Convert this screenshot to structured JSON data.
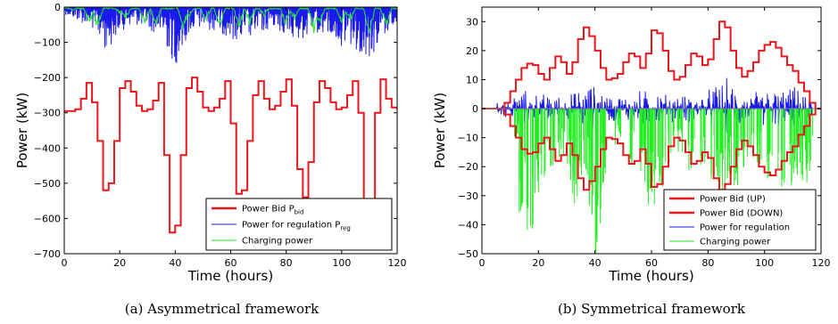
{
  "figure": {
    "captions": [
      "(a) Asymmetrical framework",
      "(b) Symmetrical framework"
    ]
  },
  "colors": {
    "bid": "#e8171c",
    "regulation": "#1a1aee",
    "charging": "#22ee22"
  },
  "chart_data": [
    {
      "type": "line",
      "title": "",
      "xlabel": "Time (hours)",
      "ylabel": "Power (kW)",
      "xlim": [
        0,
        120
      ],
      "ylim": [
        -700,
        0
      ],
      "xticks": [
        0,
        20,
        40,
        60,
        80,
        100,
        120
      ],
      "yticks": [
        0,
        -100,
        -200,
        -300,
        -400,
        -500,
        -600,
        -700
      ],
      "grid": false,
      "legend_position": "bottom-right",
      "legend": [
        {
          "label": "Power Bid P",
          "sub": "bid",
          "color": "#e8171c"
        },
        {
          "label": "Power for regulation P",
          "sub": "reg",
          "color": "#1a1aee"
        },
        {
          "label": "Charging power",
          "sub": "",
          "color": "#22ee22"
        }
      ],
      "series": [
        {
          "name": "Power Bid Pbid",
          "style": "step",
          "x": [
            0,
            4,
            6,
            8,
            10,
            12,
            14,
            16,
            18,
            20,
            22,
            24,
            26,
            28,
            30,
            32,
            34,
            36,
            38,
            40,
            42,
            44,
            46,
            48,
            50,
            52,
            54,
            56,
            58,
            60,
            62,
            64,
            66,
            68,
            70,
            72,
            74,
            76,
            78,
            80,
            82,
            84,
            86,
            88,
            90,
            92,
            94,
            96,
            98,
            100,
            102,
            104,
            106,
            108,
            110,
            112,
            114,
            116,
            118,
            120
          ],
          "y": [
            -295,
            -290,
            -260,
            -215,
            -270,
            -380,
            -520,
            -500,
            -380,
            -230,
            -210,
            -240,
            -280,
            -295,
            -290,
            -265,
            -215,
            -420,
            -640,
            -620,
            -420,
            -230,
            -200,
            -240,
            -285,
            -295,
            -285,
            -260,
            -210,
            -330,
            -530,
            -520,
            -380,
            -250,
            -210,
            -260,
            -290,
            -280,
            -240,
            -205,
            -280,
            -460,
            -540,
            -440,
            -270,
            -210,
            -230,
            -270,
            -290,
            -285,
            -250,
            -210,
            -300,
            -560,
            -560,
            -300,
            -205,
            -260,
            -285,
            -290
          ]
        },
        {
          "name": "Power for regulation Preg",
          "style": "noise-band",
          "x": [
            0,
            5,
            10,
            15,
            20,
            25,
            30,
            35,
            40,
            45,
            50,
            55,
            60,
            65,
            70,
            75,
            80,
            85,
            90,
            95,
            100,
            105,
            110,
            115,
            120
          ],
          "y": [
            -20,
            -40,
            -60,
            -130,
            -70,
            -50,
            -60,
            -90,
            -170,
            -80,
            -60,
            -70,
            -90,
            -100,
            -80,
            -60,
            -80,
            -100,
            -70,
            -90,
            -110,
            -120,
            -150,
            -90,
            -40
          ]
        },
        {
          "name": "Charging power",
          "style": "dips",
          "x": [
            3,
            9,
            12,
            20,
            22,
            29,
            33,
            43,
            45,
            51,
            56,
            63,
            67,
            72,
            80,
            83,
            90,
            92,
            100,
            103,
            110,
            116
          ],
          "y": [
            -10,
            -55,
            -70,
            -20,
            -40,
            -60,
            -55,
            -75,
            -30,
            -45,
            -65,
            -70,
            -60,
            -30,
            -65,
            -40,
            -75,
            -60,
            -50,
            -45,
            -90,
            -70
          ]
        }
      ]
    },
    {
      "type": "line",
      "title": "",
      "xlabel": "Time (hours)",
      "ylabel": "Power (kW)",
      "xlim": [
        0,
        120
      ],
      "ylim": [
        -50,
        35
      ],
      "xticks": [
        0,
        20,
        40,
        60,
        80,
        100,
        120
      ],
      "yticks": [
        30,
        20,
        10,
        0,
        -10,
        -20,
        -30,
        -40,
        -50
      ],
      "grid": false,
      "legend_position": "bottom-right",
      "legend": [
        {
          "label": "Power Bid (UP)",
          "sub": "",
          "color": "#e8171c"
        },
        {
          "label": "Power Bid (DOWN)",
          "sub": "",
          "color": "#e8171c"
        },
        {
          "label": "Power for regulation",
          "sub": "",
          "color": "#1a1aee"
        },
        {
          "label": "Charging power",
          "sub": "",
          "color": "#22ee22"
        }
      ],
      "series": [
        {
          "name": "Power Bid (UP)",
          "style": "step",
          "x": [
            0,
            6,
            8,
            10,
            12,
            14,
            16,
            18,
            20,
            22,
            24,
            26,
            28,
            30,
            32,
            34,
            36,
            38,
            40,
            42,
            44,
            46,
            48,
            50,
            52,
            54,
            56,
            58,
            60,
            62,
            64,
            66,
            68,
            70,
            72,
            74,
            76,
            78,
            80,
            82,
            84,
            86,
            88,
            90,
            92,
            94,
            96,
            98,
            100,
            102,
            104,
            106,
            108,
            110,
            112,
            114,
            116,
            118,
            120
          ],
          "y": [
            0,
            0,
            2,
            6,
            10,
            14,
            15.5,
            15,
            12,
            10,
            14,
            18,
            16,
            12,
            16,
            24,
            28,
            25,
            20,
            14,
            10,
            10.5,
            12,
            16,
            19,
            18,
            14,
            19,
            27,
            26,
            20,
            13,
            10,
            11,
            15,
            19,
            18,
            15,
            17,
            24,
            30,
            28,
            20,
            14,
            11,
            13,
            16,
            20,
            22,
            23,
            21,
            18,
            15,
            13,
            9,
            6,
            2,
            0,
            0
          ]
        },
        {
          "name": "Power Bid (DOWN)",
          "style": "step",
          "x": [
            0,
            6,
            8,
            10,
            12,
            14,
            16,
            18,
            20,
            22,
            24,
            26,
            28,
            30,
            32,
            34,
            36,
            38,
            40,
            42,
            44,
            46,
            48,
            50,
            52,
            54,
            56,
            58,
            60,
            62,
            64,
            66,
            68,
            70,
            72,
            74,
            76,
            78,
            80,
            82,
            84,
            86,
            88,
            90,
            92,
            94,
            96,
            98,
            100,
            102,
            104,
            106,
            108,
            110,
            112,
            114,
            116,
            118,
            120
          ],
          "y": [
            0,
            0,
            -2,
            -6,
            -10,
            -14,
            -15.5,
            -15,
            -12,
            -10,
            -14,
            -18,
            -16,
            -12,
            -16,
            -24,
            -28,
            -25,
            -20,
            -14,
            -10,
            -10.5,
            -12,
            -16,
            -19,
            -18,
            -14,
            -19,
            -27,
            -26,
            -20,
            -13,
            -10,
            -11,
            -15,
            -19,
            -18,
            -15,
            -17,
            -24,
            -28,
            -26,
            -20,
            -14,
            -11,
            -13,
            -16,
            -20,
            -22,
            -23,
            -21,
            -18,
            -15,
            -13,
            -9,
            -6,
            -2,
            0,
            0
          ]
        },
        {
          "name": "Power for regulation",
          "style": "noise-sym",
          "x": [
            5,
            10,
            15,
            20,
            25,
            30,
            35,
            40,
            45,
            50,
            55,
            60,
            65,
            70,
            75,
            80,
            85,
            90,
            95,
            100,
            105,
            110,
            115
          ],
          "y": [
            2,
            5,
            7,
            6,
            6,
            5,
            8,
            10,
            6,
            5,
            7,
            8,
            6,
            5,
            6,
            7,
            13,
            8,
            6,
            9,
            7,
            9,
            4
          ]
        },
        {
          "name": "Charging power",
          "style": "spikes-down",
          "x": [
            12,
            14,
            15,
            17,
            19,
            22,
            25,
            28,
            31,
            33,
            35,
            37,
            39,
            40,
            41,
            43,
            48,
            53,
            56,
            58,
            60,
            62,
            64,
            67,
            70,
            74,
            78,
            82,
            84,
            86,
            88,
            90,
            92,
            95,
            98,
            102,
            106,
            110,
            112,
            114,
            116
          ],
          "y": [
            -10,
            -42,
            -35,
            -44,
            -30,
            -25,
            -20,
            -18,
            -25,
            -35,
            -30,
            -28,
            -40,
            -50,
            -42,
            -30,
            -15,
            -20,
            -22,
            -30,
            -35,
            -25,
            -28,
            -20,
            -15,
            -22,
            -20,
            -25,
            -27,
            -30,
            -25,
            -27,
            -22,
            -18,
            -20,
            -25,
            -27,
            -28,
            -25,
            -26,
            -22
          ]
        }
      ]
    }
  ]
}
